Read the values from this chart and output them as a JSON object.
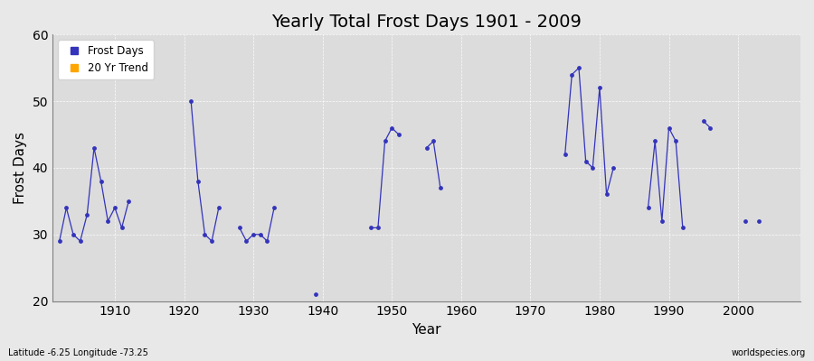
{
  "title": "Yearly Total Frost Days 1901 - 2009",
  "xlabel": "Year",
  "ylabel": "Frost Days",
  "xlim": [
    1901,
    2009
  ],
  "ylim": [
    20,
    60
  ],
  "yticks": [
    20,
    30,
    40,
    50,
    60
  ],
  "bg_outer": "#e8e8e8",
  "bg_inner": "#dcdcdc",
  "line_color": "#3333bb",
  "trend_color": "#ffa500",
  "watermark_left": "Latitude -6.25 Longitude -73.25",
  "watermark_right": "worldspecies.org",
  "legend_labels": [
    "Frost Days",
    "20 Yr Trend"
  ],
  "xticks": [
    1910,
    1920,
    1930,
    1940,
    1950,
    1960,
    1970,
    1980,
    1990,
    2000
  ],
  "segments": [
    {
      "years": [
        1902,
        1903,
        1904,
        1905,
        1906,
        1907,
        1908,
        1909,
        1910,
        1911,
        1912
      ],
      "values": [
        29,
        34,
        30,
        29,
        33,
        43,
        38,
        32,
        34,
        31,
        35
      ]
    },
    {
      "years": [
        1921,
        1922,
        1923,
        1924,
        1925
      ],
      "values": [
        50,
        38,
        30,
        29,
        34
      ]
    },
    {
      "years": [
        1928,
        1929,
        1930,
        1931,
        1932,
        1933
      ],
      "values": [
        31,
        29,
        30,
        30,
        29,
        34
      ]
    },
    {
      "years": [
        1939
      ],
      "values": [
        21
      ]
    },
    {
      "years": [
        1947,
        1948,
        1949,
        1950,
        1951
      ],
      "values": [
        31,
        31,
        44,
        46,
        45
      ]
    },
    {
      "years": [
        1955,
        1956,
        1957
      ],
      "values": [
        43,
        44,
        37
      ]
    },
    {
      "years": [
        1975,
        1976,
        1977,
        1978,
        1979,
        1980,
        1981,
        1982
      ],
      "values": [
        42,
        54,
        55,
        41,
        40,
        52,
        36,
        40
      ]
    },
    {
      "years": [
        1987,
        1988,
        1989,
        1990,
        1991,
        1992
      ],
      "values": [
        34,
        44,
        32,
        46,
        44,
        31
      ]
    },
    {
      "years": [
        1995,
        1996
      ],
      "values": [
        47,
        46
      ]
    },
    {
      "years": [
        2001
      ],
      "values": [
        32
      ]
    },
    {
      "years": [
        2003
      ],
      "values": [
        32
      ]
    }
  ]
}
